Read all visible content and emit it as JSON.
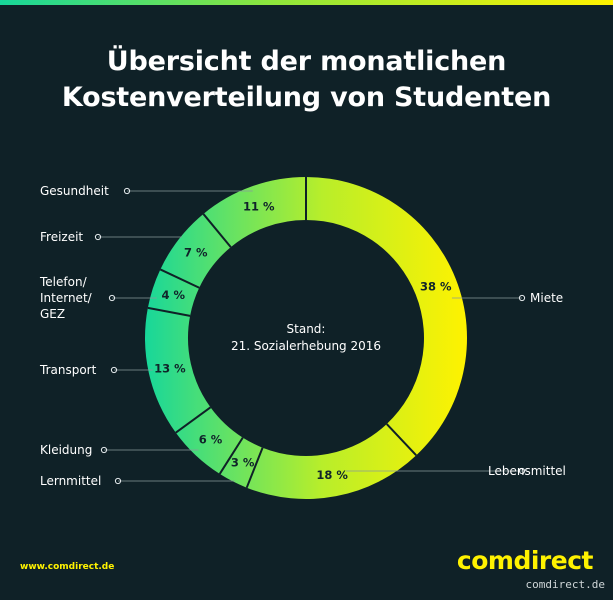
{
  "title": {
    "line1": "Übersicht der monatlichen",
    "line2": "Kostenverteilung von Studenten"
  },
  "chart_data": {
    "type": "pie",
    "center_text": [
      "Stand:",
      "21. Sozialerhebung 2016"
    ],
    "slices": [
      {
        "label": "Miete",
        "value": 38,
        "value_label": "38 %"
      },
      {
        "label": "Lebensmittel",
        "value": 18,
        "value_label": "18 %"
      },
      {
        "label": "Lernmittel",
        "value": 3,
        "value_label": "3 %"
      },
      {
        "label": "Kleidung",
        "value": 6,
        "value_label": "6 %"
      },
      {
        "label": "Transport",
        "value": 13,
        "value_label": "13 %"
      },
      {
        "label": "Telefon/ Internet/ GEZ",
        "label_lines": [
          "Telefon/",
          "Internet/",
          "GEZ"
        ],
        "value": 4,
        "value_label": "4 %"
      },
      {
        "label": "Freizeit",
        "value": 7,
        "value_label": "7 %"
      },
      {
        "label": "Gesundheit",
        "value": 11,
        "value_label": "11 %"
      }
    ],
    "colors": {
      "start": "#17d79a",
      "end": "#fff200",
      "background": "#0f2127"
    }
  },
  "footer": {
    "url": "www.comdirect.de",
    "brand": "comdirect",
    "brand_url": "comdirect.de"
  }
}
